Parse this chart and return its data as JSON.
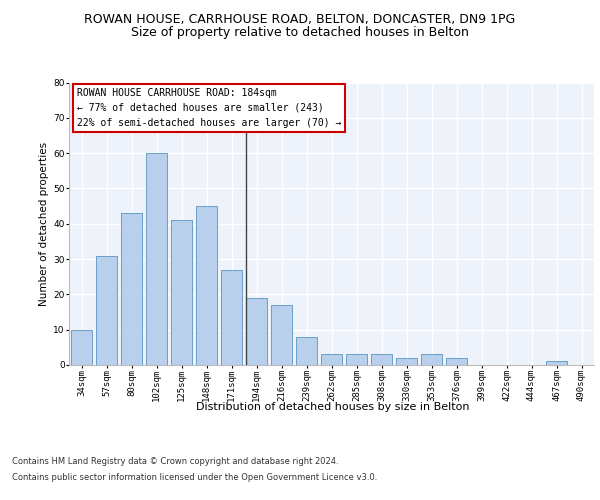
{
  "title1": "ROWAN HOUSE, CARRHOUSE ROAD, BELTON, DONCASTER, DN9 1PG",
  "title2": "Size of property relative to detached houses in Belton",
  "xlabel": "Distribution of detached houses by size in Belton",
  "ylabel": "Number of detached properties",
  "categories": [
    "34sqm",
    "57sqm",
    "80sqm",
    "102sqm",
    "125sqm",
    "148sqm",
    "171sqm",
    "194sqm",
    "216sqm",
    "239sqm",
    "262sqm",
    "285sqm",
    "308sqm",
    "330sqm",
    "353sqm",
    "376sqm",
    "399sqm",
    "422sqm",
    "444sqm",
    "467sqm",
    "490sqm"
  ],
  "values": [
    10,
    31,
    43,
    60,
    41,
    45,
    27,
    19,
    17,
    8,
    3,
    3,
    3,
    2,
    3,
    2,
    0,
    0,
    0,
    1,
    0
  ],
  "bar_color": "#b8d0eb",
  "bar_edge_color": "#6a9fc8",
  "annotation_line1": "ROWAN HOUSE CARRHOUSE ROAD: 184sqm",
  "annotation_line2": "← 77% of detached houses are smaller (243)",
  "annotation_line3": "22% of semi-detached houses are larger (70) →",
  "annotation_box_facecolor": "#ffffff",
  "annotation_box_edgecolor": "#cc0000",
  "vline_x": 6.57,
  "vline_color": "#444444",
  "footnote1": "Contains HM Land Registry data © Crown copyright and database right 2024.",
  "footnote2": "Contains public sector information licensed under the Open Government Licence v3.0.",
  "ylim": [
    0,
    80
  ],
  "yticks": [
    0,
    10,
    20,
    30,
    40,
    50,
    60,
    70,
    80
  ],
  "bg_color": "#eef2fa",
  "grid_color": "#ffffff",
  "fig_bg_color": "#ffffff",
  "title1_fontsize": 9,
  "title2_fontsize": 9,
  "xlabel_fontsize": 8,
  "ylabel_fontsize": 7.5,
  "tick_fontsize": 6.5,
  "annot_fontsize": 7,
  "footnote_fontsize": 6
}
